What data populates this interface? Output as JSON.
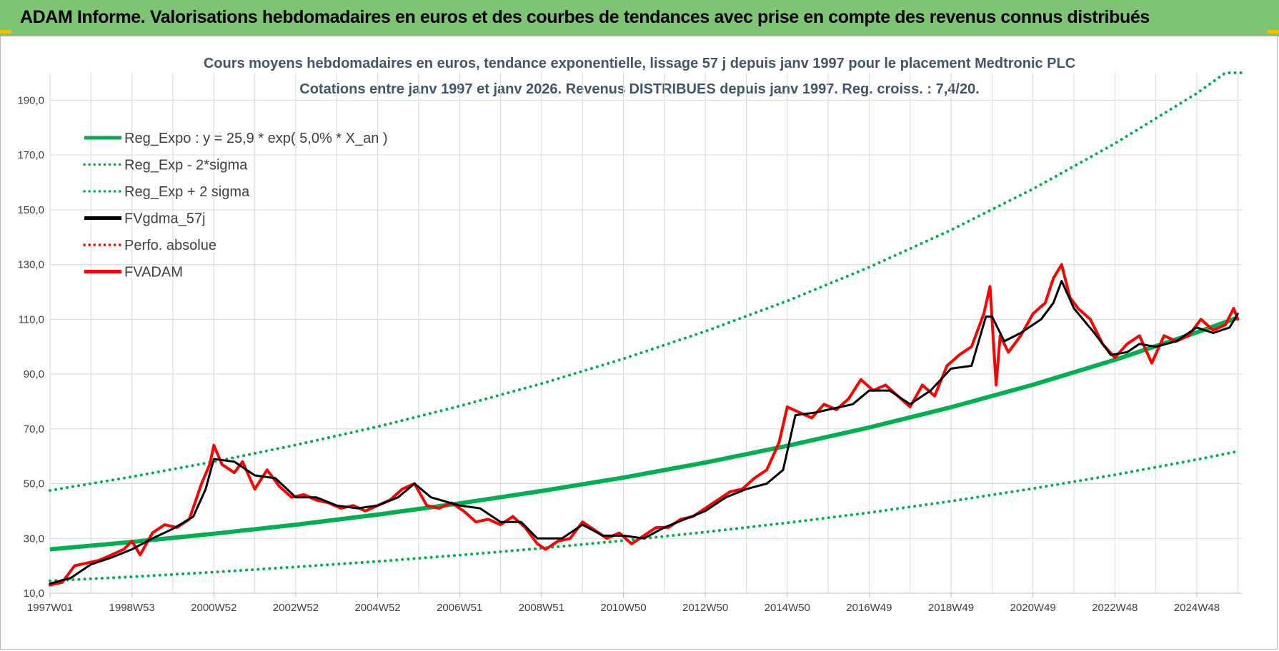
{
  "header": {
    "title": "ADAM Informe. Valorisations hebdomadaires en euros et des courbes de tendances avec prise en compte des revenus connus distribués"
  },
  "colors": {
    "banner": "#7dc474",
    "reg_expo": "#00b050",
    "fvgdma": "#000000",
    "fvadam": "#ff0000",
    "grid": "#d9d9d9"
  },
  "chart_data": {
    "type": "line",
    "title": [
      "Cours moyens hebdomadaires en euros, tendance exponentielle, lissage 57 j depuis janv 1997 pour le placement Medtronic PLC",
      "Cotations entre janv 1997 et janv 2026. Revenus DISTRIBUES depuis janv 1997. Reg. croiss. : 7,4/20."
    ],
    "xlabel": "",
    "ylabel": "",
    "x_tick_labels": [
      "1997W01",
      "1998W53",
      "2000W52",
      "2002W52",
      "2004W52",
      "2006W51",
      "2008W51",
      "2010W50",
      "2012W50",
      "2014W50",
      "2016W49",
      "2018W49",
      "2020W49",
      "2022W48",
      "2024W48"
    ],
    "x_tick_years": [
      1997,
      1999,
      2001,
      2003,
      2005,
      2007,
      2009,
      2011,
      2013,
      2015,
      2017,
      2019,
      2021,
      2023,
      2025
    ],
    "xlim": [
      1997.0,
      2026.1
    ],
    "y_tick_labels": [
      "10,0",
      "30,0",
      "50,0",
      "70,0",
      "90,0",
      "110,0",
      "130,0",
      "150,0",
      "170,0",
      "190,0"
    ],
    "y_ticks": [
      10,
      30,
      50,
      70,
      90,
      110,
      130,
      150,
      170,
      190
    ],
    "ylim": [
      10,
      200
    ],
    "grid": true,
    "legend_position": "top-left",
    "legend": [
      {
        "label": "Reg_Expo : y = 25,9 * exp( 5,0% *  X_an )",
        "color": "#00b050",
        "style": "solid"
      },
      {
        "label": "Reg_Exp - 2*sigma",
        "color": "#00b050",
        "style": "dotted"
      },
      {
        "label": "Reg_Exp + 2 sigma",
        "color": "#00b050",
        "style": "dotted"
      },
      {
        "label": "FVgdma_57j",
        "color": "#000000",
        "style": "solid"
      },
      {
        "label": "Perfo. absolue",
        "color": "#ff0000",
        "style": "dotted"
      },
      {
        "label": "FVADAM",
        "color": "#ff0000",
        "style": "solid"
      }
    ],
    "series": [
      {
        "name": "Reg_Expo : y = 25,9 * exp( 5,0% *  X_an )",
        "x": [
          1997.0,
          1999.0,
          2001.0,
          2003.0,
          2005.0,
          2007.0,
          2009.0,
          2011.0,
          2013.0,
          2015.0,
          2017.0,
          2019.0,
          2021.0,
          2023.0,
          2025.0,
          2026.0
        ],
        "values": [
          26.0,
          28.7,
          31.7,
          35.0,
          38.7,
          42.8,
          47.3,
          52.2,
          57.7,
          63.8,
          70.5,
          77.9,
          86.1,
          95.2,
          105.2,
          110.6
        ]
      },
      {
        "name": "Reg_Exp - 2*sigma",
        "x": [
          1997.0,
          1999.0,
          2001.0,
          2003.0,
          2005.0,
          2007.0,
          2009.0,
          2011.0,
          2013.0,
          2015.0,
          2017.0,
          2019.0,
          2021.0,
          2023.0,
          2025.0,
          2026.0
        ],
        "values": [
          14.5,
          16.0,
          17.7,
          19.6,
          21.6,
          23.9,
          26.4,
          29.2,
          32.3,
          35.7,
          39.4,
          43.6,
          48.2,
          53.2,
          58.8,
          61.8
        ]
      },
      {
        "name": "Reg_Exp + 2 sigma",
        "x": [
          1997.0,
          1999.0,
          2001.0,
          2003.0,
          2005.0,
          2007.0,
          2009.0,
          2011.0,
          2013.0,
          2015.0,
          2017.0,
          2019.0,
          2021.0,
          2023.0,
          2025.0,
          2025.7,
          2026.1
        ],
        "values": [
          47.5,
          52.5,
          58.0,
          64.1,
          70.8,
          78.3,
          86.5,
          95.6,
          105.6,
          116.7,
          129.0,
          142.6,
          157.6,
          174.2,
          192.5,
          200.0,
          200.0
        ]
      },
      {
        "name": "FVgdma_57j",
        "x": [
          1997.0,
          1997.5,
          1998.0,
          1998.5,
          1999.0,
          1999.5,
          2000.0,
          2000.5,
          2000.8,
          2001.0,
          2001.5,
          2002.0,
          2002.5,
          2003.0,
          2003.5,
          2004.0,
          2004.5,
          2005.0,
          2005.5,
          2005.9,
          2006.3,
          2007.0,
          2007.5,
          2008.0,
          2008.5,
          2008.9,
          2009.5,
          2010.0,
          2010.5,
          2011.0,
          2011.5,
          2012.0,
          2012.5,
          2013.0,
          2013.5,
          2014.0,
          2014.5,
          2014.9,
          2015.2,
          2015.7,
          2016.0,
          2016.6,
          2017.0,
          2017.5,
          2018.0,
          2018.5,
          2019.0,
          2019.5,
          2019.85,
          2020.0,
          2020.3,
          2020.7,
          2021.2,
          2021.5,
          2021.7,
          2022.0,
          2022.5,
          2022.9,
          2023.3,
          2023.6,
          2024.0,
          2024.5,
          2025.0,
          2025.4,
          2025.8,
          2026.0
        ],
        "values": [
          13.5,
          15.5,
          20.5,
          23.0,
          26.0,
          30.0,
          33.5,
          38.0,
          48.0,
          59.0,
          58.0,
          53.0,
          52.0,
          45.0,
          45.0,
          42.0,
          41.0,
          42.0,
          45.0,
          50.0,
          45.0,
          42.0,
          41.0,
          36.0,
          36.0,
          30.0,
          30.0,
          35.0,
          31.0,
          31.0,
          30.0,
          34.0,
          37.0,
          40.0,
          45.0,
          48.0,
          50.0,
          55.0,
          75.0,
          76.0,
          77.0,
          79.0,
          84.0,
          84.0,
          79.0,
          84.0,
          92.0,
          93.0,
          111.0,
          111.0,
          102.0,
          105.0,
          110.0,
          116.0,
          124.0,
          114.0,
          105.0,
          97.0,
          98.0,
          101.0,
          100.0,
          102.0,
          107.0,
          105.0,
          107.0,
          112.0
        ]
      },
      {
        "name": "FVADAM",
        "x": [
          1997.0,
          1997.3,
          1997.6,
          1997.9,
          1998.2,
          1998.5,
          1998.8,
          1999.0,
          1999.2,
          1999.5,
          1999.8,
          2000.1,
          2000.4,
          2000.7,
          2000.9,
          2001.0,
          2001.2,
          2001.5,
          2001.7,
          2002.0,
          2002.3,
          2002.6,
          2002.9,
          2003.2,
          2003.5,
          2003.8,
          2004.1,
          2004.4,
          2004.7,
          2005.0,
          2005.3,
          2005.6,
          2005.9,
          2006.2,
          2006.5,
          2006.8,
          2007.1,
          2007.4,
          2007.7,
          2008.0,
          2008.3,
          2008.6,
          2008.9,
          2009.1,
          2009.4,
          2009.7,
          2010.0,
          2010.3,
          2010.6,
          2010.9,
          2011.2,
          2011.5,
          2011.8,
          2012.1,
          2012.4,
          2012.7,
          2013.0,
          2013.3,
          2013.6,
          2013.9,
          2014.2,
          2014.5,
          2014.8,
          2015.0,
          2015.3,
          2015.6,
          2015.9,
          2016.2,
          2016.5,
          2016.8,
          2017.1,
          2017.4,
          2017.7,
          2018.0,
          2018.3,
          2018.6,
          2018.9,
          2019.2,
          2019.5,
          2019.8,
          2019.95,
          2020.1,
          2020.2,
          2020.4,
          2020.7,
          2021.0,
          2021.3,
          2021.5,
          2021.7,
          2021.9,
          2022.1,
          2022.4,
          2022.7,
          2023.0,
          2023.3,
          2023.6,
          2023.9,
          2024.2,
          2024.5,
          2024.8,
          2025.1,
          2025.4,
          2025.7,
          2025.9,
          2026.0
        ],
        "values": [
          13.0,
          14.0,
          20.0,
          21.0,
          22.0,
          24.0,
          26.0,
          29.0,
          24.0,
          32.0,
          35.0,
          34.0,
          37.0,
          50.0,
          57.0,
          64.0,
          57.0,
          54.0,
          58.0,
          48.0,
          55.0,
          49.0,
          45.0,
          46.0,
          44.0,
          43.0,
          41.0,
          42.0,
          40.0,
          42.0,
          44.0,
          48.0,
          50.0,
          42.0,
          41.0,
          43.0,
          40.0,
          36.0,
          37.0,
          35.0,
          38.0,
          34.0,
          28.0,
          26.0,
          29.0,
          30.0,
          36.0,
          33.0,
          30.0,
          32.0,
          28.0,
          31.0,
          34.0,
          34.0,
          37.0,
          38.0,
          41.0,
          44.0,
          47.0,
          48.0,
          52.0,
          55.0,
          65.0,
          78.0,
          76.0,
          74.0,
          79.0,
          77.0,
          81.0,
          88.0,
          84.0,
          86.0,
          82.0,
          78.0,
          86.0,
          82.0,
          93.0,
          97.0,
          100.0,
          112.0,
          122.0,
          86.0,
          104.0,
          98.0,
          104.0,
          112.0,
          116.0,
          125.0,
          130.0,
          118.0,
          114.0,
          110.0,
          101.0,
          96.0,
          101.0,
          104.0,
          94.0,
          104.0,
          102.0,
          104.0,
          110.0,
          106.0,
          108.0,
          114.0,
          110.0
        ]
      }
    ]
  }
}
